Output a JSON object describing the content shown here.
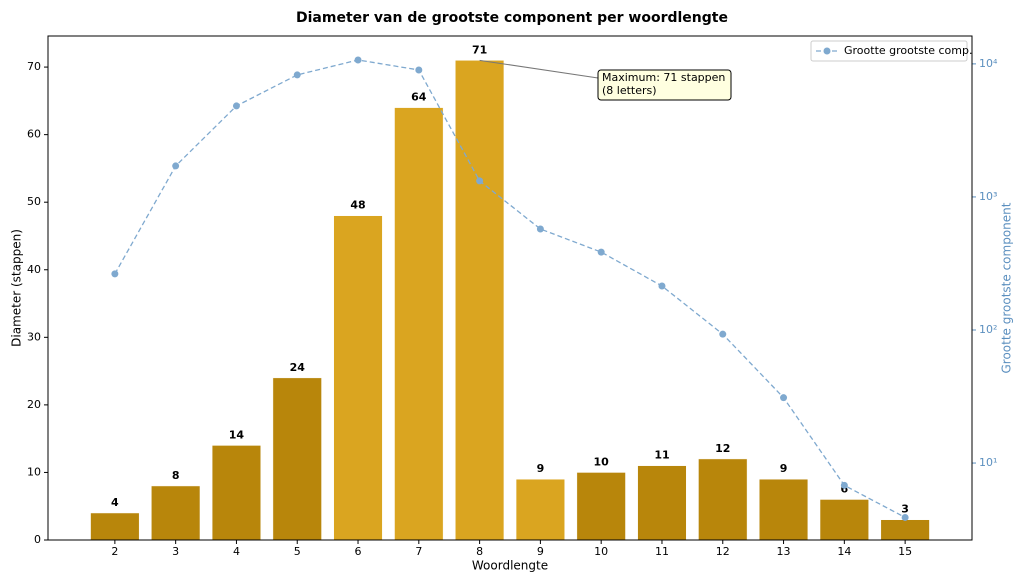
{
  "chart_data": {
    "type": "bar_line",
    "title": "Diameter van de grootste component per woordlengte",
    "xlabel": "Woordlengte",
    "ylabel": "Diameter (stappen)",
    "y2label": "Grootte grootste component",
    "x": [
      2,
      3,
      4,
      5,
      6,
      7,
      8,
      9,
      10,
      11,
      12,
      13,
      14,
      15
    ],
    "xlim": [
      0.9,
      16.1
    ],
    "xticks": [
      2,
      3,
      4,
      5,
      6,
      7,
      8,
      9,
      10,
      11,
      12,
      13,
      14,
      15
    ],
    "ylim": [
      0,
      74.6
    ],
    "yticks": [
      0,
      10,
      20,
      30,
      40,
      50,
      60,
      70
    ],
    "y2lim": [
      2.64,
      16200
    ],
    "y2scale": "log",
    "y2ticks": [
      {
        "value": 10,
        "label": "10¹"
      },
      {
        "value": 100,
        "label": "10²"
      },
      {
        "value": 1000,
        "label": "10³"
      },
      {
        "value": 10000,
        "label": "10⁴"
      }
    ],
    "series": [
      {
        "name": "Diameter",
        "type": "bar",
        "colors": [
          "#b8860b",
          "#b8860b",
          "#b8860b",
          "#b8860b",
          "#daa520",
          "#daa520",
          "#daa520",
          "#daa520",
          "#b8860b",
          "#b8860b",
          "#b8860b",
          "#b8860b",
          "#b8860b",
          "#b8860b"
        ],
        "values": [
          4,
          8,
          14,
          24,
          48,
          64,
          71,
          9,
          10,
          11,
          12,
          9,
          6,
          3
        ]
      },
      {
        "name": "Grootte grootste comp.",
        "type": "line",
        "axis": "y2",
        "color": "#7fa9cf",
        "values": [
          264,
          1710,
          4830,
          8260,
          10700,
          9000,
          1320,
          574,
          385,
          214,
          93,
          31,
          6.8,
          3.9
        ]
      }
    ],
    "annotation": {
      "text": [
        "Maximum: 71 stappen",
        "(8 letters)"
      ],
      "x": 8,
      "y": 71
    },
    "legend": "upper right"
  }
}
